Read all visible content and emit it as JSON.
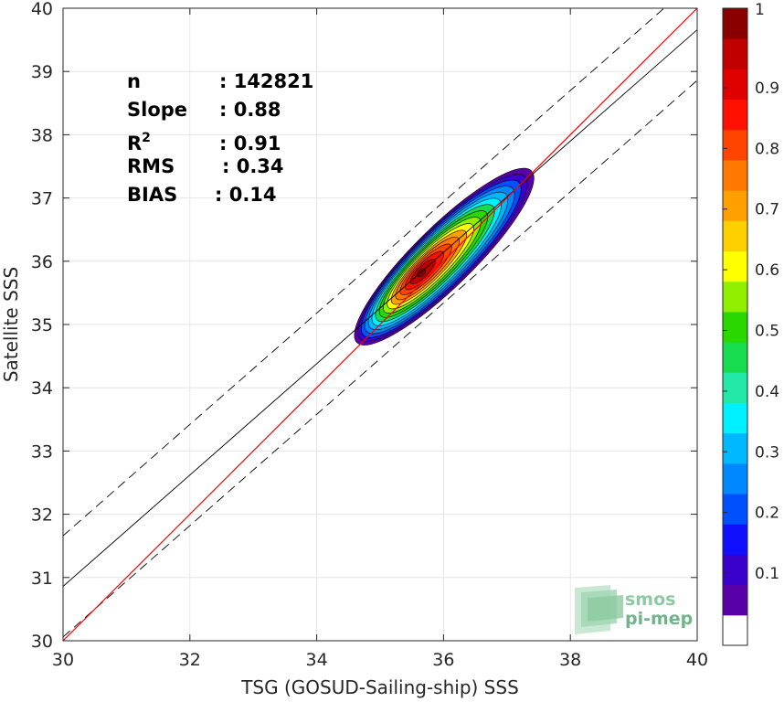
{
  "chart_data": {
    "type": "heatmap",
    "subtype": "density-contour-scatter",
    "xlabel": "TSG (GOSUD-Sailing-ship) SSS",
    "ylabel": "Satellite SSS",
    "xlim": [
      30,
      40
    ],
    "ylim": [
      30,
      40
    ],
    "xticks": [
      30,
      32,
      34,
      36,
      38,
      40
    ],
    "yticks": [
      30,
      31,
      32,
      33,
      34,
      35,
      36,
      37,
      38,
      39,
      40
    ],
    "grid": true,
    "stats": [
      {
        "label": "n",
        "value": ": 142821"
      },
      {
        "label": "Slope",
        "value": ": 0.88"
      },
      {
        "label": "R",
        "sup": "2",
        "value": ": 0.91"
      },
      {
        "label": "RMS",
        "value": ": 0.34"
      },
      {
        "label": "BIAS",
        "value": ": 0.14"
      }
    ],
    "lines": {
      "identity": {
        "slope": 1.0,
        "intercept": 0.0,
        "color": "#ff0000"
      },
      "regression": {
        "slope": 0.88,
        "intercept": 4.46,
        "color": "#000000"
      },
      "offset_dashed": [
        0.8,
        -0.8
      ]
    },
    "density_peak": {
      "x": 35.65,
      "y": 35.82
    },
    "colorbar": {
      "ticks": [
        "0.1",
        "0.2",
        "0.3",
        "0.4",
        "0.5",
        "0.6",
        "0.7",
        "0.8",
        "0.9",
        "1"
      ],
      "tick_values": [
        0.1,
        0.2,
        0.3,
        0.4,
        0.5,
        0.6,
        0.7,
        0.8,
        0.9,
        1.0
      ],
      "range": [
        0,
        1
      ],
      "colors": [
        "#ffffff",
        "#5a00a8",
        "#3a00cc",
        "#1010ff",
        "#0050ff",
        "#0088ff",
        "#00b8ff",
        "#00f0ff",
        "#22e8a8",
        "#18dc50",
        "#2ad800",
        "#90f000",
        "#ffff00",
        "#ffd000",
        "#ffa000",
        "#ff7800",
        "#ff4400",
        "#ff1000",
        "#e00000",
        "#c00000",
        "#8a0000"
      ]
    }
  },
  "logo": {
    "line1": "smos",
    "line2": "pi-mep"
  }
}
